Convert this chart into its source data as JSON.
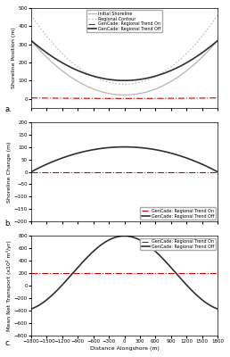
{
  "xlim": [
    -1800,
    1800
  ],
  "xticks": [
    -1800,
    -1500,
    -1200,
    -900,
    -600,
    -300,
    0,
    300,
    600,
    900,
    1200,
    1500,
    1800
  ],
  "xlabel": "Distance Alongshore (m)",
  "panel_a": {
    "ylabel": "Shoreline Position (m)",
    "ylim": [
      -50,
      500
    ],
    "yticks": [
      0,
      100,
      200,
      300,
      400,
      500
    ],
    "label": "a.",
    "legend": [
      "Initial Shoreline",
      "Regional Contour",
      "GenCade: Regional Trend On",
      "GenCade: Regional Trend Off"
    ]
  },
  "panel_b": {
    "ylabel": "Shoreline Change (m)",
    "ylim": [
      -200,
      200
    ],
    "yticks": [
      -200,
      -150,
      -100,
      -50,
      0,
      50,
      100,
      150,
      200
    ],
    "label": "b.",
    "legend": [
      "GenCade: Regional Trend On",
      "GenCade: Regional Trend Off"
    ]
  },
  "panel_c": {
    "ylabel": "Mean Net Transport (x10² m³/yr)",
    "ylim": [
      -800,
      800
    ],
    "yticks": [
      -800,
      -600,
      -400,
      -200,
      0,
      200,
      400,
      600,
      800
    ],
    "label": "c.",
    "legend": [
      "GenCade: Regional Trend On",
      "GenCade: Regional Trend Off"
    ]
  },
  "colors": {
    "initial_shoreline": "#bbbbbb",
    "regional_contour": "#bbbbbb",
    "trend_on": "#cc0000",
    "trend_off": "#303030"
  },
  "background": "#ffffff",
  "figure_background": "#ffffff"
}
